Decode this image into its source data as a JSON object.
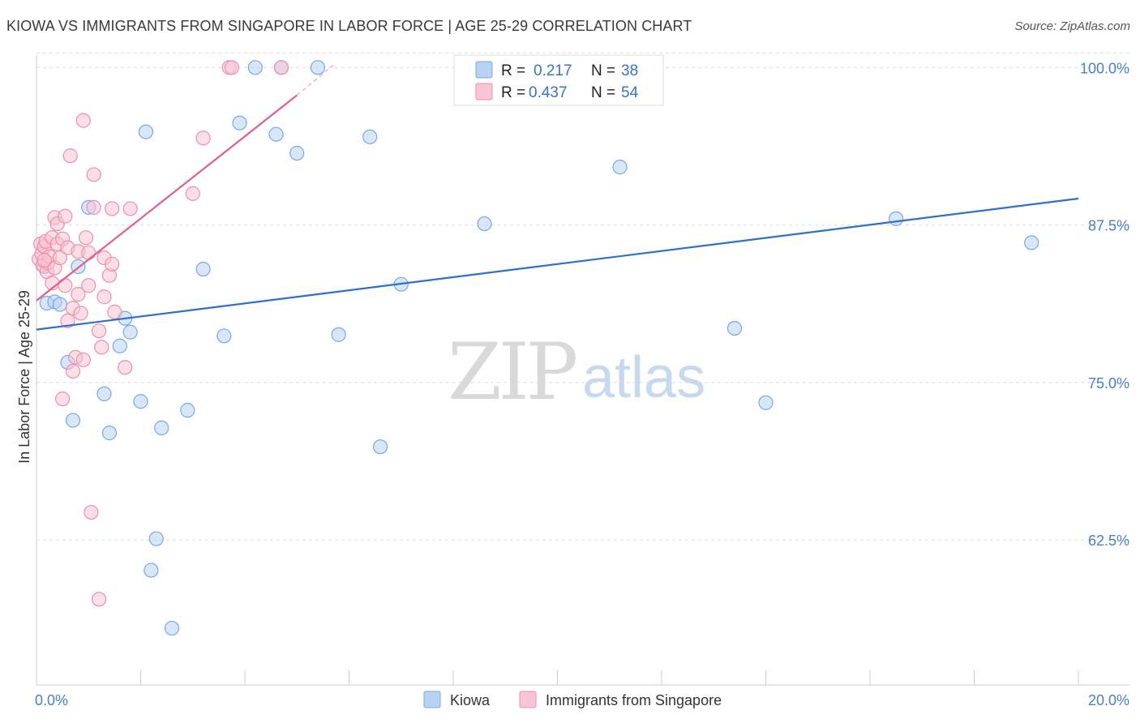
{
  "title": "KIOWA VS IMMIGRANTS FROM SINGAPORE IN LABOR FORCE | AGE 25-29 CORRELATION CHART",
  "source": "Source: ZipAtlas.com",
  "watermark": {
    "zip": "ZIP",
    "atlas": "atlas"
  },
  "colors": {
    "kiowa_fill": "#b8d3f2",
    "kiowa_stroke": "#7aa8e0",
    "kiowa_line": "#2f6fc9",
    "sing_fill": "#f8c5d4",
    "sing_stroke": "#ec8fad",
    "sing_line": "#e0608a",
    "grid": "#dcdcdc",
    "tick_text": "#4a7fc8"
  },
  "legend": {
    "rows": [
      {
        "r_label": "R =",
        "r_value": "0.217",
        "n_label": "N =",
        "n_value": "38"
      },
      {
        "r_label": "R =",
        "r_value": "0.437",
        "n_label": "N =",
        "n_value": "54"
      }
    ]
  },
  "chart_data": {
    "type": "scatter",
    "title": "KIOWA VS IMMIGRANTS FROM SINGAPORE IN LABOR FORCE | AGE 25-29 CORRELATION CHART",
    "xlabel": "",
    "ylabel": "In Labor Force | Age 25-29",
    "xlim": [
      0,
      20
    ],
    "ylim": [
      51,
      101.5
    ],
    "x_tick_labels": [
      {
        "value": 0,
        "label": "0.0%"
      },
      {
        "value": 20,
        "label": "20.0%"
      }
    ],
    "y_tick_labels": [
      {
        "value": 100,
        "label": "100.0%"
      },
      {
        "value": 87.5,
        "label": "87.5%"
      },
      {
        "value": 75,
        "label": "75.0%"
      },
      {
        "value": 62.5,
        "label": "62.5%"
      }
    ],
    "x_minor_ticks": [
      0,
      2,
      4,
      6,
      8,
      10,
      12,
      14,
      16,
      18,
      20
    ],
    "series": [
      {
        "name": "Kiowa",
        "trend": {
          "x": [
            0,
            20
          ],
          "y": [
            79.2,
            89.6
          ]
        },
        "points": [
          {
            "x": 0.2,
            "y": 81.3
          },
          {
            "x": 0.35,
            "y": 81.4
          },
          {
            "x": 0.45,
            "y": 81.2
          },
          {
            "x": 0.6,
            "y": 76.6
          },
          {
            "x": 0.8,
            "y": 84.2
          },
          {
            "x": 1.0,
            "y": 88.9
          },
          {
            "x": 1.3,
            "y": 74.1
          },
          {
            "x": 1.4,
            "y": 71.0
          },
          {
            "x": 1.6,
            "y": 77.9
          },
          {
            "x": 1.7,
            "y": 80.1
          },
          {
            "x": 1.8,
            "y": 79.0
          },
          {
            "x": 2.0,
            "y": 73.5
          },
          {
            "x": 2.1,
            "y": 94.9
          },
          {
            "x": 2.2,
            "y": 60.1
          },
          {
            "x": 2.3,
            "y": 62.6
          },
          {
            "x": 2.4,
            "y": 71.4
          },
          {
            "x": 2.6,
            "y": 55.5
          },
          {
            "x": 2.9,
            "y": 72.8
          },
          {
            "x": 3.2,
            "y": 84.0
          },
          {
            "x": 3.6,
            "y": 78.7
          },
          {
            "x": 3.9,
            "y": 95.6
          },
          {
            "x": 4.2,
            "y": 100.0
          },
          {
            "x": 4.6,
            "y": 94.7
          },
          {
            "x": 4.7,
            "y": 100.0
          },
          {
            "x": 5.0,
            "y": 93.2
          },
          {
            "x": 5.4,
            "y": 100.0
          },
          {
            "x": 5.8,
            "y": 78.8
          },
          {
            "x": 6.4,
            "y": 94.5
          },
          {
            "x": 6.6,
            "y": 69.9
          },
          {
            "x": 7.0,
            "y": 82.8
          },
          {
            "x": 8.6,
            "y": 87.6
          },
          {
            "x": 11.2,
            "y": 92.1
          },
          {
            "x": 0.7,
            "y": 72.0
          },
          {
            "x": 13.4,
            "y": 79.3
          },
          {
            "x": 14.0,
            "y": 73.4
          },
          {
            "x": 16.5,
            "y": 88.0
          },
          {
            "x": 19.1,
            "y": 86.1
          },
          {
            "x": 0.15,
            "y": 84.2
          }
        ]
      },
      {
        "name": "Immigrants from Singapore",
        "trend": {
          "x": [
            0,
            5.0
          ],
          "y": [
            81.5,
            97.8
          ]
        },
        "trend_dashed": {
          "x": [
            5.0,
            5.7
          ],
          "y": [
            97.8,
            100.2
          ]
        },
        "points": [
          {
            "x": 0.05,
            "y": 84.8
          },
          {
            "x": 0.08,
            "y": 86.0
          },
          {
            "x": 0.1,
            "y": 85.2
          },
          {
            "x": 0.12,
            "y": 84.3
          },
          {
            "x": 0.15,
            "y": 85.8
          },
          {
            "x": 0.18,
            "y": 86.2
          },
          {
            "x": 0.2,
            "y": 83.8
          },
          {
            "x": 0.22,
            "y": 84.5
          },
          {
            "x": 0.25,
            "y": 85.0
          },
          {
            "x": 0.3,
            "y": 86.5
          },
          {
            "x": 0.3,
            "y": 82.9
          },
          {
            "x": 0.35,
            "y": 84.1
          },
          {
            "x": 0.35,
            "y": 88.1
          },
          {
            "x": 0.4,
            "y": 86.0
          },
          {
            "x": 0.4,
            "y": 87.6
          },
          {
            "x": 0.45,
            "y": 84.9
          },
          {
            "x": 0.5,
            "y": 86.4
          },
          {
            "x": 0.5,
            "y": 73.7
          },
          {
            "x": 0.55,
            "y": 82.7
          },
          {
            "x": 0.55,
            "y": 88.2
          },
          {
            "x": 0.6,
            "y": 85.7
          },
          {
            "x": 0.6,
            "y": 79.9
          },
          {
            "x": 0.65,
            "y": 93.0
          },
          {
            "x": 0.7,
            "y": 80.9
          },
          {
            "x": 0.7,
            "y": 75.9
          },
          {
            "x": 0.75,
            "y": 77.0
          },
          {
            "x": 0.8,
            "y": 85.4
          },
          {
            "x": 0.8,
            "y": 82.0
          },
          {
            "x": 0.85,
            "y": 80.5
          },
          {
            "x": 0.9,
            "y": 76.8
          },
          {
            "x": 0.9,
            "y": 95.8
          },
          {
            "x": 0.95,
            "y": 86.5
          },
          {
            "x": 1.0,
            "y": 82.7
          },
          {
            "x": 1.0,
            "y": 85.3
          },
          {
            "x": 1.05,
            "y": 64.7
          },
          {
            "x": 1.1,
            "y": 91.5
          },
          {
            "x": 1.1,
            "y": 88.9
          },
          {
            "x": 1.2,
            "y": 79.1
          },
          {
            "x": 1.2,
            "y": 57.8
          },
          {
            "x": 1.25,
            "y": 77.8
          },
          {
            "x": 1.3,
            "y": 81.8
          },
          {
            "x": 1.3,
            "y": 84.9
          },
          {
            "x": 1.4,
            "y": 83.5
          },
          {
            "x": 1.45,
            "y": 84.4
          },
          {
            "x": 1.5,
            "y": 80.6
          },
          {
            "x": 1.45,
            "y": 88.8
          },
          {
            "x": 1.7,
            "y": 76.2
          },
          {
            "x": 1.8,
            "y": 88.8
          },
          {
            "x": 3.0,
            "y": 90.0
          },
          {
            "x": 3.2,
            "y": 94.4
          },
          {
            "x": 3.7,
            "y": 100.0
          },
          {
            "x": 3.75,
            "y": 100.0
          },
          {
            "x": 4.7,
            "y": 100.0
          },
          {
            "x": 0.15,
            "y": 84.7
          }
        ]
      }
    ],
    "legend": [
      {
        "name": "Kiowa"
      },
      {
        "name": "Immigrants from Singapore"
      }
    ]
  }
}
